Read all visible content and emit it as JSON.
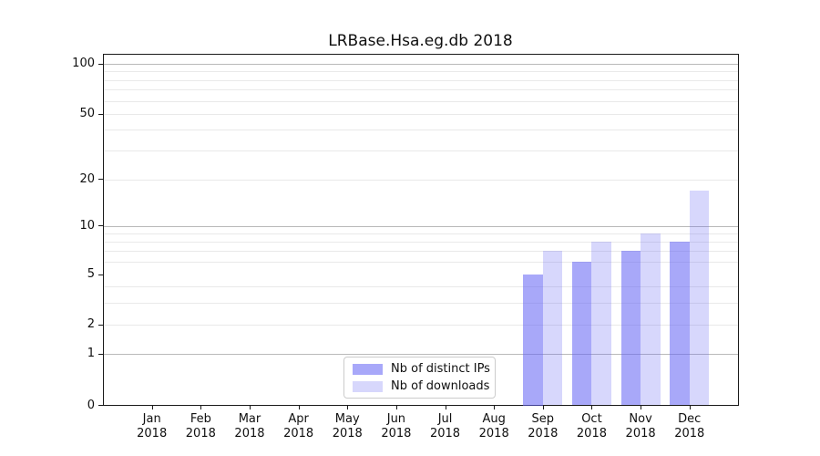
{
  "title": "LRBase.Hsa.eg.db 2018",
  "chart_data": {
    "type": "bar",
    "title": "LRBase.Hsa.eg.db 2018",
    "xlabel": "",
    "ylabel": "",
    "year": "2018",
    "categories": [
      "Jan",
      "Feb",
      "Mar",
      "Apr",
      "May",
      "Jun",
      "Jul",
      "Aug",
      "Sep",
      "Oct",
      "Nov",
      "Dec"
    ],
    "series": [
      {
        "name": "Nb of distinct IPs",
        "color_key": "ips",
        "values": [
          0,
          0,
          0,
          0,
          0,
          0,
          0,
          0,
          5,
          6,
          7,
          8
        ]
      },
      {
        "name": "Nb of downloads",
        "color_key": "downloads",
        "values": [
          0,
          0,
          0,
          0,
          0,
          0,
          0,
          0,
          7,
          8,
          9,
          17
        ]
      }
    ],
    "yticks": [
      0,
      1,
      2,
      5,
      10,
      20,
      50,
      100
    ],
    "ylim": [
      0,
      115
    ],
    "scale": "log-like with 0 baseline",
    "grid": true,
    "major_dark_gridlines": [
      1,
      10,
      100
    ],
    "minor_gridlines": [
      2,
      3,
      4,
      6,
      7,
      8,
      9,
      20,
      30,
      40,
      50,
      60,
      70,
      80,
      90
    ],
    "legend_position": "lower center",
    "colors": {
      "ips": "rgba(100,100,245,0.56)",
      "downloads": "rgba(100,100,245,0.26)",
      "ips_hex_on_white": "#a9a9f9",
      "downloads_hex_on_white": "#d7d7fc",
      "gridline_major": "#b9b9b9",
      "gridline_minor": "#e9e9e9",
      "spine": "#1a1a1a"
    }
  }
}
